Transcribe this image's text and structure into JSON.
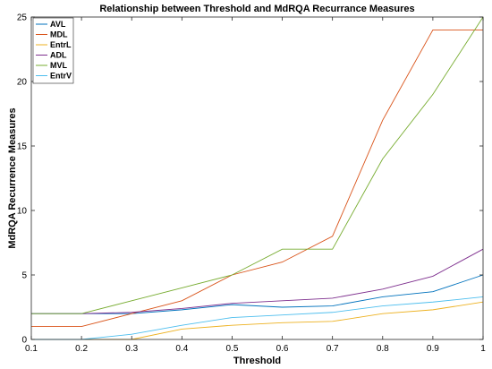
{
  "chart_data": {
    "type": "line",
    "title": "Relationship between Threshold and MdRQA Recurrance Measures",
    "xlabel": "Threshold",
    "ylabel": "MdRQA Recurrence Measures",
    "xlim": [
      0.1,
      1
    ],
    "ylim": [
      0,
      25
    ],
    "xticks": [
      "0.1",
      "0.2",
      "0.3",
      "0.4",
      "0.5",
      "0.6",
      "0.7",
      "0.8",
      "0.9",
      "1"
    ],
    "yticks": [
      "0",
      "5",
      "10",
      "15",
      "20",
      "25"
    ],
    "grid": false,
    "legend_position": "top-left",
    "x": [
      0.1,
      0.2,
      0.3,
      0.4,
      0.5,
      0.6,
      0.7,
      0.8,
      0.9,
      1.0
    ],
    "series": [
      {
        "name": "AVL",
        "color": "#0072BD",
        "values": [
          2.0,
          2.0,
          2.0,
          2.3,
          2.7,
          2.5,
          2.6,
          3.3,
          3.7,
          5.0
        ]
      },
      {
        "name": "MDL",
        "color": "#D95319",
        "values": [
          1.0,
          1.0,
          2.0,
          3.0,
          5.0,
          6.0,
          8.0,
          17.0,
          24.0,
          24.0
        ]
      },
      {
        "name": "EntrL",
        "color": "#EDB120",
        "values": [
          0.0,
          0.0,
          0.0,
          0.8,
          1.1,
          1.3,
          1.4,
          2.0,
          2.3,
          2.9
        ]
      },
      {
        "name": "ADL",
        "color": "#7E2F8E",
        "values": [
          2.0,
          2.0,
          2.1,
          2.4,
          2.8,
          3.0,
          3.2,
          3.9,
          4.9,
          7.0
        ]
      },
      {
        "name": "MVL",
        "color": "#77AC30",
        "values": [
          2.0,
          2.0,
          3.0,
          4.0,
          5.0,
          7.0,
          7.0,
          14.0,
          19.0,
          25.0
        ]
      },
      {
        "name": "EntrV",
        "color": "#4DBEEE",
        "values": [
          0.0,
          0.0,
          0.4,
          1.1,
          1.7,
          1.9,
          2.1,
          2.6,
          2.9,
          3.3
        ]
      }
    ]
  }
}
